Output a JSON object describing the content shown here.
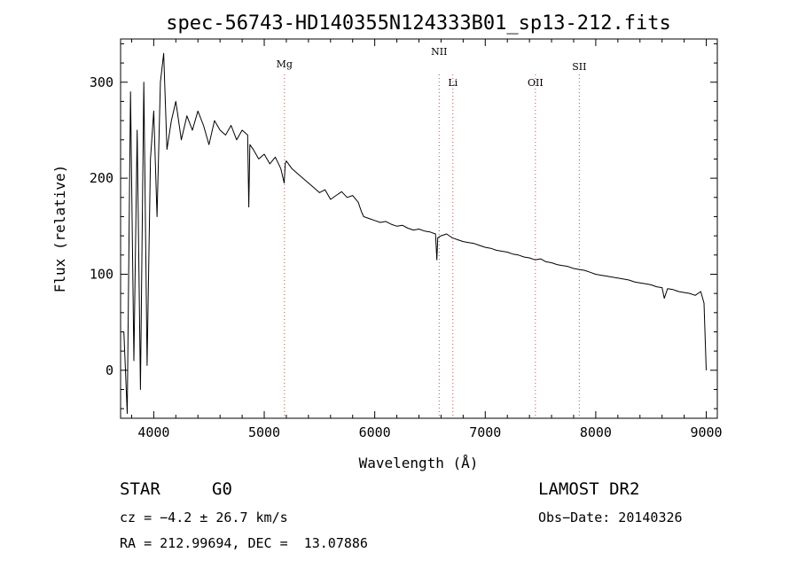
{
  "chart_data": {
    "type": "line",
    "title": "spec-56743-HD140355N124333B01_sp13-212.fits",
    "xlabel": "Wavelength (Å)",
    "ylabel": "Flux (relative)",
    "xlim": [
      3700,
      9100
    ],
    "ylim": [
      -50,
      345
    ],
    "xticks": [
      4000,
      5000,
      6000,
      7000,
      8000,
      9000
    ],
    "yticks": [
      0,
      100,
      200,
      300
    ],
    "grid": false,
    "series": [
      {
        "x": [
          3730,
          3760,
          3790,
          3820,
          3850,
          3880,
          3910,
          3940,
          3970,
          4000,
          4030,
          4060,
          4090,
          4120,
          4160,
          4200,
          4250,
          4300,
          4350,
          4400,
          4450,
          4500,
          4550,
          4600,
          4650,
          4700,
          4750,
          4800,
          4850,
          4860,
          4870,
          4900,
          4950,
          5000,
          5050,
          5100,
          5150,
          5180,
          5190,
          5200,
          5250,
          5300,
          5350,
          5400,
          5450,
          5500,
          5550,
          5600,
          5650,
          5700,
          5750,
          5800,
          5850,
          5880,
          5900,
          5950,
          6000,
          6050,
          6100,
          6150,
          6200,
          6250,
          6300,
          6350,
          6400,
          6450,
          6500,
          6550,
          6562,
          6570,
          6600,
          6650,
          6700,
          6750,
          6800,
          6850,
          6900,
          6950,
          7000,
          7050,
          7100,
          7150,
          7200,
          7250,
          7300,
          7350,
          7400,
          7450,
          7500,
          7550,
          7600,
          7650,
          7700,
          7750,
          7800,
          7850,
          7900,
          7950,
          8000,
          8050,
          8100,
          8150,
          8200,
          8250,
          8300,
          8350,
          8400,
          8450,
          8500,
          8550,
          8600,
          8620,
          8650,
          8700,
          8750,
          8800,
          8850,
          8900,
          8950,
          8980,
          9000
        ],
        "y": [
          40,
          -45,
          290,
          10,
          250,
          -20,
          300,
          5,
          220,
          270,
          160,
          300,
          330,
          230,
          260,
          280,
          240,
          265,
          250,
          270,
          255,
          235,
          260,
          250,
          245,
          255,
          240,
          250,
          245,
          170,
          235,
          230,
          220,
          225,
          215,
          222,
          210,
          195,
          215,
          218,
          210,
          205,
          200,
          195,
          190,
          185,
          188,
          178,
          182,
          186,
          180,
          182,
          175,
          165,
          160,
          158,
          156,
          154,
          155,
          152,
          150,
          151,
          148,
          146,
          147,
          145,
          144,
          142,
          115,
          138,
          140,
          142,
          138,
          136,
          134,
          133,
          132,
          130,
          128,
          127,
          125,
          124,
          123,
          121,
          120,
          118,
          117,
          115,
          116,
          113,
          112,
          110,
          109,
          108,
          106,
          105,
          104,
          102,
          100,
          99,
          98,
          97,
          96,
          95,
          94,
          92,
          91,
          90,
          89,
          87,
          86,
          75,
          85,
          84,
          82,
          81,
          80,
          78,
          82,
          70,
          0
        ]
      }
    ],
    "lines": [
      {
        "name": "Mg",
        "x": 5183
      },
      {
        "name": "NII",
        "x": 6583
      },
      {
        "name": "Li",
        "x": 6707
      },
      {
        "name": "OII",
        "x": 7454
      },
      {
        "name": "SII",
        "x": 7851
      }
    ]
  },
  "info": {
    "object_class": "STAR",
    "subclass": "G0",
    "survey": "LAMOST DR2",
    "cz": "cz = −4.2 ± 26.7 km/s",
    "obs_date": "Obs−Date: 20140326",
    "coords": "RA = 212.99694, DEC =  13.07886"
  }
}
